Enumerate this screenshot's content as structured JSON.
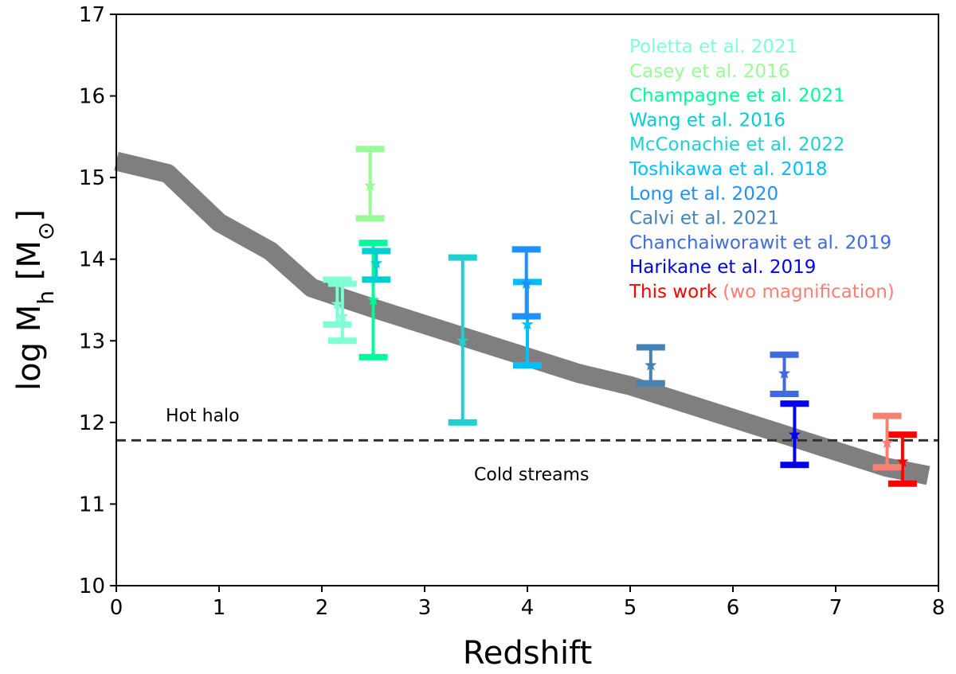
{
  "chart_data": {
    "type": "scatter",
    "xlabel": "Redshift",
    "ylabel": "log M_h [M_⊙]",
    "xlim": [
      0,
      8
    ],
    "ylim": [
      10,
      17
    ],
    "xticks": [
      "0",
      "1",
      "2",
      "3",
      "4",
      "5",
      "6",
      "7",
      "8"
    ],
    "yticks": [
      "10",
      "11",
      "12",
      "13",
      "14",
      "15",
      "16",
      "17"
    ],
    "grid": false,
    "legend_placement": "top-right",
    "band": {
      "color": "#7f7f7f",
      "points": [
        [
          0,
          15.2
        ],
        [
          0.5,
          15.05
        ],
        [
          1.0,
          14.45
        ],
        [
          1.5,
          14.1
        ],
        [
          1.9,
          13.65
        ],
        [
          2.5,
          13.4
        ],
        [
          3.0,
          13.2
        ],
        [
          3.5,
          13.0
        ],
        [
          4.0,
          12.8
        ],
        [
          4.5,
          12.6
        ],
        [
          5.0,
          12.45
        ],
        [
          5.5,
          12.25
        ],
        [
          6.0,
          12.05
        ],
        [
          6.5,
          11.85
        ],
        [
          7.0,
          11.65
        ],
        [
          7.5,
          11.45
        ],
        [
          7.9,
          11.35
        ]
      ]
    },
    "threshold": {
      "y": 11.78,
      "color": "#333333",
      "labels": {
        "above": "Hot halo",
        "below": "Cold streams"
      }
    },
    "series": [
      {
        "name": "Poletta et al. 2021",
        "color": "#7fffd4",
        "points": [
          {
            "x": 2.15,
            "y": 13.45,
            "ylo": 13.2,
            "yhi": 13.75
          },
          {
            "x": 2.2,
            "y": 13.3,
            "ylo": 13.0,
            "yhi": 13.7
          }
        ]
      },
      {
        "name": "Casey et al. 2016",
        "color": "#98fb98",
        "points": [
          {
            "x": 2.47,
            "y": 14.9,
            "ylo": 14.5,
            "yhi": 15.35
          }
        ]
      },
      {
        "name": "Champagne et al. 2021",
        "color": "#00fa9a",
        "points": [
          {
            "x": 2.5,
            "y": 13.5,
            "ylo": 12.8,
            "yhi": 14.2
          }
        ]
      },
      {
        "name": "Wang et al. 2016",
        "color": "#00ced1",
        "points": [
          {
            "x": 2.53,
            "y": 13.95,
            "ylo": 13.75,
            "yhi": 14.1
          }
        ]
      },
      {
        "name": "McConachie et al. 2022",
        "color": "#20d0d0",
        "points": [
          {
            "x": 3.37,
            "y": 13.0,
            "ylo": 12.0,
            "yhi": 14.02
          }
        ]
      },
      {
        "name": "Toshikawa et al. 2018",
        "color": "#00bfff",
        "points": [
          {
            "x": 4.0,
            "y": 13.2,
            "ylo": 12.7,
            "yhi": 13.72
          }
        ]
      },
      {
        "name": "Long et al. 2020",
        "color": "#1e90ff",
        "points": [
          {
            "x": 3.99,
            "y": 13.7,
            "ylo": 13.3,
            "yhi": 14.12
          }
        ]
      },
      {
        "name": "Calvi et al. 2021",
        "color": "#4682b4",
        "points": [
          {
            "x": 5.2,
            "y": 12.7,
            "ylo": 12.48,
            "yhi": 12.92
          }
        ]
      },
      {
        "name": "Chanchaiworawit et al. 2019",
        "color": "#4169e1",
        "points": [
          {
            "x": 6.5,
            "y": 12.6,
            "ylo": 12.35,
            "yhi": 12.83
          }
        ]
      },
      {
        "name": "Harikane et al. 2019",
        "color": "#0000ee",
        "points": [
          {
            "x": 6.6,
            "y": 11.85,
            "ylo": 11.48,
            "yhi": 12.23
          }
        ]
      },
      {
        "name": "This work",
        "name_extra": "(wo magnification)",
        "color": "#ff0000",
        "extra_color": "#fa8072",
        "points": [
          {
            "x": 7.65,
            "y": 11.52,
            "ylo": 11.25,
            "yhi": 11.85
          }
        ]
      },
      {
        "name": "",
        "color": "#fa8072",
        "points": [
          {
            "x": 7.5,
            "y": 11.75,
            "ylo": 11.45,
            "yhi": 12.08
          }
        ]
      }
    ]
  }
}
